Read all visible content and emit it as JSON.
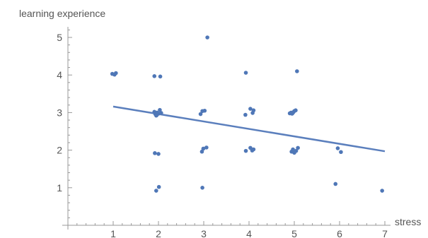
{
  "chart_data": {
    "type": "scatter",
    "xlabel": "stress",
    "ylabel": "learning experience",
    "xlim": [
      0,
      7.1
    ],
    "ylim": [
      0,
      5.2
    ],
    "xticks": [
      1,
      2,
      3,
      4,
      5,
      6,
      7
    ],
    "yticks": [
      1,
      2,
      3,
      4,
      5
    ],
    "grid": false,
    "colors": {
      "points": "#4f77b7",
      "line": "#5b7fbd",
      "axis": "#999999",
      "text": "#555555"
    },
    "points": [
      {
        "x": 0.98,
        "y": 4.03
      },
      {
        "x": 1.03,
        "y": 4.01
      },
      {
        "x": 1.06,
        "y": 4.05
      },
      {
        "x": 1.91,
        "y": 3.97
      },
      {
        "x": 2.04,
        "y": 3.96
      },
      {
        "x": 1.91,
        "y": 3.02
      },
      {
        "x": 1.93,
        "y": 2.96
      },
      {
        "x": 1.95,
        "y": 2.92
      },
      {
        "x": 1.97,
        "y": 3.0
      },
      {
        "x": 2.0,
        "y": 2.97
      },
      {
        "x": 2.03,
        "y": 3.07
      },
      {
        "x": 2.06,
        "y": 2.99
      },
      {
        "x": 1.96,
        "y": 2.93
      },
      {
        "x": 1.92,
        "y": 1.92
      },
      {
        "x": 2.0,
        "y": 1.9
      },
      {
        "x": 1.95,
        "y": 0.92
      },
      {
        "x": 2.01,
        "y": 1.02
      },
      {
        "x": 3.08,
        "y": 5.0
      },
      {
        "x": 2.93,
        "y": 2.96
      },
      {
        "x": 2.97,
        "y": 3.04
      },
      {
        "x": 3.02,
        "y": 3.05
      },
      {
        "x": 2.96,
        "y": 1.96
      },
      {
        "x": 2.99,
        "y": 2.04
      },
      {
        "x": 3.06,
        "y": 2.07
      },
      {
        "x": 2.97,
        "y": 1.0
      },
      {
        "x": 3.93,
        "y": 4.06
      },
      {
        "x": 3.92,
        "y": 2.94
      },
      {
        "x": 4.03,
        "y": 3.1
      },
      {
        "x": 4.08,
        "y": 2.99
      },
      {
        "x": 4.1,
        "y": 3.06
      },
      {
        "x": 3.93,
        "y": 1.98
      },
      {
        "x": 4.03,
        "y": 2.06
      },
      {
        "x": 4.07,
        "y": 1.99
      },
      {
        "x": 4.1,
        "y": 2.02
      },
      {
        "x": 5.06,
        "y": 4.1
      },
      {
        "x": 4.9,
        "y": 2.98
      },
      {
        "x": 4.93,
        "y": 3.0
      },
      {
        "x": 4.95,
        "y": 2.97
      },
      {
        "x": 4.98,
        "y": 3.01
      },
      {
        "x": 5.0,
        "y": 3.04
      },
      {
        "x": 5.03,
        "y": 3.06
      },
      {
        "x": 4.96,
        "y": 2.98
      },
      {
        "x": 4.94,
        "y": 1.96
      },
      {
        "x": 4.97,
        "y": 2.02
      },
      {
        "x": 5.0,
        "y": 1.93
      },
      {
        "x": 5.04,
        "y": 1.98
      },
      {
        "x": 5.08,
        "y": 2.06
      },
      {
        "x": 5.96,
        "y": 2.05
      },
      {
        "x": 6.03,
        "y": 1.95
      },
      {
        "x": 5.91,
        "y": 1.1
      },
      {
        "x": 6.94,
        "y": 0.92
      }
    ],
    "fit_line": {
      "x1": 1.0,
      "y1": 3.16,
      "x2": 7.0,
      "y2": 1.97
    }
  }
}
